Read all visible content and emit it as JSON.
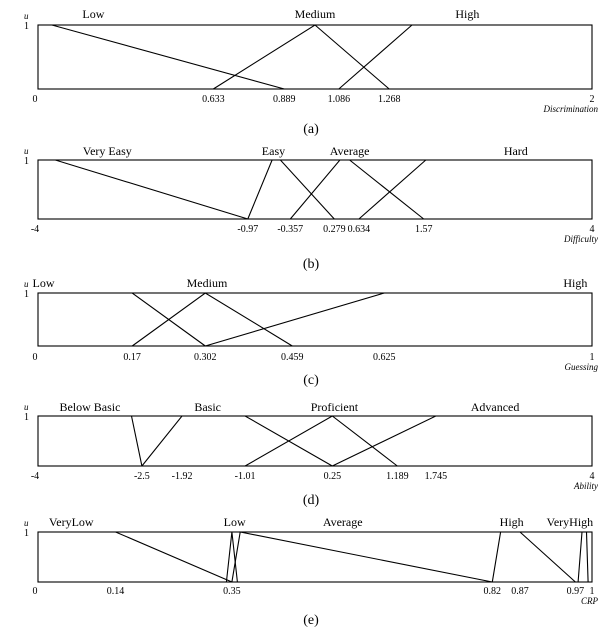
{
  "panels": [
    {
      "caption": "(a)",
      "axis_name": "Discrimination",
      "u_label": "u",
      "one_label": "1",
      "min_label": "0",
      "max_label": "2",
      "xmin": 0,
      "xmax": 2,
      "ticks": [
        {
          "v": 0.633,
          "label": "0.633"
        },
        {
          "v": 0.889,
          "label": "0.889"
        },
        {
          "v": 1.086,
          "label": "1.086"
        },
        {
          "v": 1.268,
          "label": "1.268"
        }
      ],
      "sets": [
        {
          "name": "Low",
          "label_x": 0.2,
          "points": [
            [
              0,
              1
            ],
            [
              0.05,
              1
            ],
            [
              0.889,
              0
            ]
          ]
        },
        {
          "name": "Medium",
          "label_x": 1.0,
          "points": [
            [
              0.633,
              0
            ],
            [
              1.0,
              1
            ],
            [
              1.268,
              0
            ]
          ]
        },
        {
          "name": "High",
          "label_x": 1.55,
          "points": [
            [
              1.086,
              0
            ],
            [
              1.35,
              1
            ],
            [
              2,
              1
            ]
          ]
        }
      ]
    },
    {
      "caption": "(b)",
      "axis_name": "Difficulty",
      "u_label": "u",
      "one_label": "1",
      "min_label": "-4",
      "max_label": "4",
      "xmin": -4,
      "xmax": 4,
      "ticks": [
        {
          "v": -0.97,
          "label": "-0.97"
        },
        {
          "v": -0.357,
          "label": "-0.357"
        },
        {
          "v": 0.279,
          "label": "0.279"
        },
        {
          "v": 0.634,
          "label": "0.634"
        },
        {
          "v": 1.57,
          "label": "1.57"
        }
      ],
      "sets": [
        {
          "name": "Very Easy",
          "label_x": -3.0,
          "points": [
            [
              -4,
              1
            ],
            [
              -3.75,
              1
            ],
            [
              -0.97,
              0
            ]
          ]
        },
        {
          "name": "Easy",
          "label_x": -0.6,
          "points": [
            [
              -0.97,
              0
            ],
            [
              -0.62,
              1
            ],
            [
              -0.5,
              1
            ],
            [
              0.279,
              0
            ]
          ]
        },
        {
          "name": "Average",
          "label_x": 0.5,
          "points": [
            [
              -0.357,
              0
            ],
            [
              0.36,
              1
            ],
            [
              0.5,
              1
            ],
            [
              1.57,
              0
            ]
          ]
        },
        {
          "name": "Hard",
          "label_x": 2.9,
          "points": [
            [
              0.634,
              0
            ],
            [
              1.6,
              1
            ],
            [
              4,
              1
            ]
          ]
        }
      ]
    },
    {
      "caption": "(c)",
      "axis_name": "Guessing",
      "u_label": "u",
      "one_label": "1",
      "min_label": "0",
      "max_label": "1",
      "xmin": 0,
      "xmax": 1,
      "ticks": [
        {
          "v": 0.17,
          "label": "0.17"
        },
        {
          "v": 0.302,
          "label": "0.302"
        },
        {
          "v": 0.459,
          "label": "0.459"
        },
        {
          "v": 0.625,
          "label": "0.625"
        }
      ],
      "sets": [
        {
          "name": "Low",
          "label_x": 0.01,
          "points": [
            [
              0,
              1
            ],
            [
              0.17,
              1
            ],
            [
              0.302,
              0
            ]
          ]
        },
        {
          "name": "Medium",
          "label_x": 0.305,
          "points": [
            [
              0.17,
              0
            ],
            [
              0.302,
              1
            ],
            [
              0.459,
              0
            ]
          ]
        },
        {
          "name": "High",
          "label_x": 0.97,
          "points": [
            [
              0.302,
              0
            ],
            [
              0.625,
              1
            ],
            [
              1,
              1
            ]
          ]
        }
      ]
    },
    {
      "caption": "(d)",
      "axis_name": "Ability",
      "u_label": "u",
      "one_label": "1",
      "min_label": "-4",
      "max_label": "4",
      "xmin": -4,
      "xmax": 4,
      "ticks": [
        {
          "v": -2.5,
          "label": "-2.5"
        },
        {
          "v": -1.92,
          "label": "-1.92"
        },
        {
          "v": -1.01,
          "label": "-1.01"
        },
        {
          "v": 0.25,
          "label": "0.25"
        },
        {
          "v": 1.189,
          "label": "1.189"
        },
        {
          "v": 1.745,
          "label": "1.745"
        }
      ],
      "sets": [
        {
          "name": "Below Basic",
          "label_x": -3.25,
          "points": [
            [
              -4,
              1
            ],
            [
              -2.65,
              1
            ],
            [
              -2.5,
              0
            ]
          ]
        },
        {
          "name": "Basic",
          "label_x": -1.55,
          "points": [
            [
              -2.5,
              0
            ],
            [
              -1.92,
              1
            ],
            [
              -1.01,
              1
            ],
            [
              0.25,
              0
            ]
          ]
        },
        {
          "name": "Proficient",
          "label_x": 0.28,
          "points": [
            [
              -1.01,
              0
            ],
            [
              0.25,
              1
            ],
            [
              1.189,
              0
            ]
          ]
        },
        {
          "name": "Advanced",
          "label_x": 2.6,
          "points": [
            [
              0.25,
              0
            ],
            [
              1.745,
              1
            ],
            [
              4,
              1
            ]
          ]
        }
      ]
    },
    {
      "caption": "(e)",
      "axis_name": "CRP",
      "u_label": "u",
      "one_label": "1",
      "min_label": "0",
      "max_label": "1",
      "xmin": 0,
      "xmax": 1,
      "ticks": [
        {
          "v": 0.14,
          "label": "0.14"
        },
        {
          "v": 0.35,
          "label": "0.35"
        },
        {
          "v": 0.82,
          "label": "0.82"
        },
        {
          "v": 0.87,
          "label": "0.87"
        },
        {
          "v": 0.97,
          "label": "0.97"
        }
      ],
      "sets": [
        {
          "name": "VeryLow",
          "label_x": 0.06,
          "points": [
            [
              0,
              1
            ],
            [
              0.14,
              1
            ],
            [
              0.35,
              0
            ]
          ]
        },
        {
          "name": "Low",
          "label_x": 0.355,
          "points": [
            [
              0.34,
              0
            ],
            [
              0.35,
              1
            ],
            [
              0.36,
              0
            ]
          ]
        },
        {
          "name": "Average",
          "label_x": 0.55,
          "points": [
            [
              0.35,
              0
            ],
            [
              0.365,
              1
            ],
            [
              0.82,
              0
            ]
          ]
        },
        {
          "name": "High",
          "label_x": 0.855,
          "points": [
            [
              0.82,
              0
            ],
            [
              0.835,
              1
            ],
            [
              0.87,
              1
            ],
            [
              0.97,
              0
            ]
          ]
        },
        {
          "name": "VeryHigh",
          "label_x": 0.96,
          "points": [
            [
              0.975,
              0
            ],
            [
              0.982,
              1
            ],
            [
              0.99,
              1
            ],
            [
              0.993,
              0
            ]
          ]
        }
      ]
    }
  ]
}
